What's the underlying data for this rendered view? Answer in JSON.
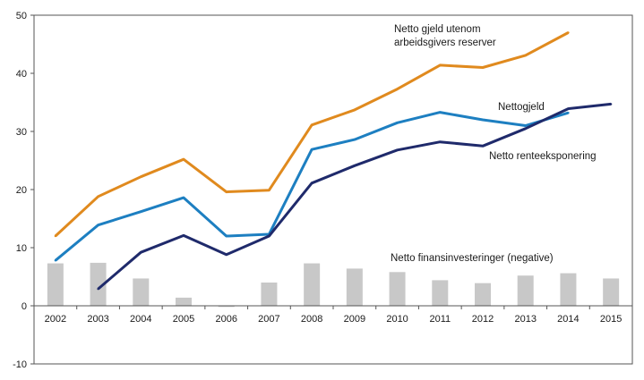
{
  "chart_data": {
    "type": "line",
    "x": [
      "2002",
      "2003",
      "2004",
      "2005",
      "2006",
      "2007",
      "2008",
      "2009",
      "2010",
      "2011",
      "2012",
      "2013",
      "2014",
      "2015"
    ],
    "ylim": [
      -10,
      50
    ],
    "yticks": [
      -10,
      0,
      10,
      20,
      30,
      40,
      50
    ],
    "grid": false,
    "series": [
      {
        "name": "Netto finansinvesteringer (negative)",
        "type": "bar",
        "color": "#c8c8c8",
        "values": [
          7.3,
          7.4,
          4.7,
          1.4,
          -0.2,
          4.0,
          7.3,
          6.4,
          5.8,
          4.4,
          3.9,
          5.2,
          5.6,
          4.7
        ]
      },
      {
        "name": "Netto gjeld utenom arbeidsgivers reserver",
        "type": "line",
        "color": "#e08a1e",
        "values": [
          12.0,
          18.8,
          22.2,
          25.2,
          19.6,
          19.9,
          31.1,
          33.7,
          37.3,
          41.4,
          41.0,
          43.1,
          47.0,
          null
        ]
      },
      {
        "name": "Nettogjeld",
        "type": "line",
        "color": "#1d7fc1",
        "values": [
          7.8,
          13.9,
          16.2,
          18.6,
          12.0,
          12.3,
          26.9,
          28.6,
          31.5,
          33.3,
          32.0,
          31.0,
          33.2,
          null
        ]
      },
      {
        "name": "Netto renteeksponering",
        "type": "line",
        "color": "#1f2a6b",
        "values": [
          null,
          2.9,
          9.2,
          12.1,
          8.8,
          12.0,
          21.1,
          24.1,
          26.8,
          28.2,
          27.5,
          30.5,
          33.9,
          34.7
        ]
      }
    ],
    "annotations": [
      {
        "id": "orange",
        "lines": [
          "Netto gjeld utenom",
          "arbeidsgivers reserver"
        ]
      },
      {
        "id": "light",
        "lines": [
          "Nettogjeld"
        ]
      },
      {
        "id": "dark",
        "lines": [
          "Netto renteeksponering"
        ]
      },
      {
        "id": "bars",
        "lines": [
          "Netto finansinvesteringer (negative)"
        ]
      }
    ]
  }
}
